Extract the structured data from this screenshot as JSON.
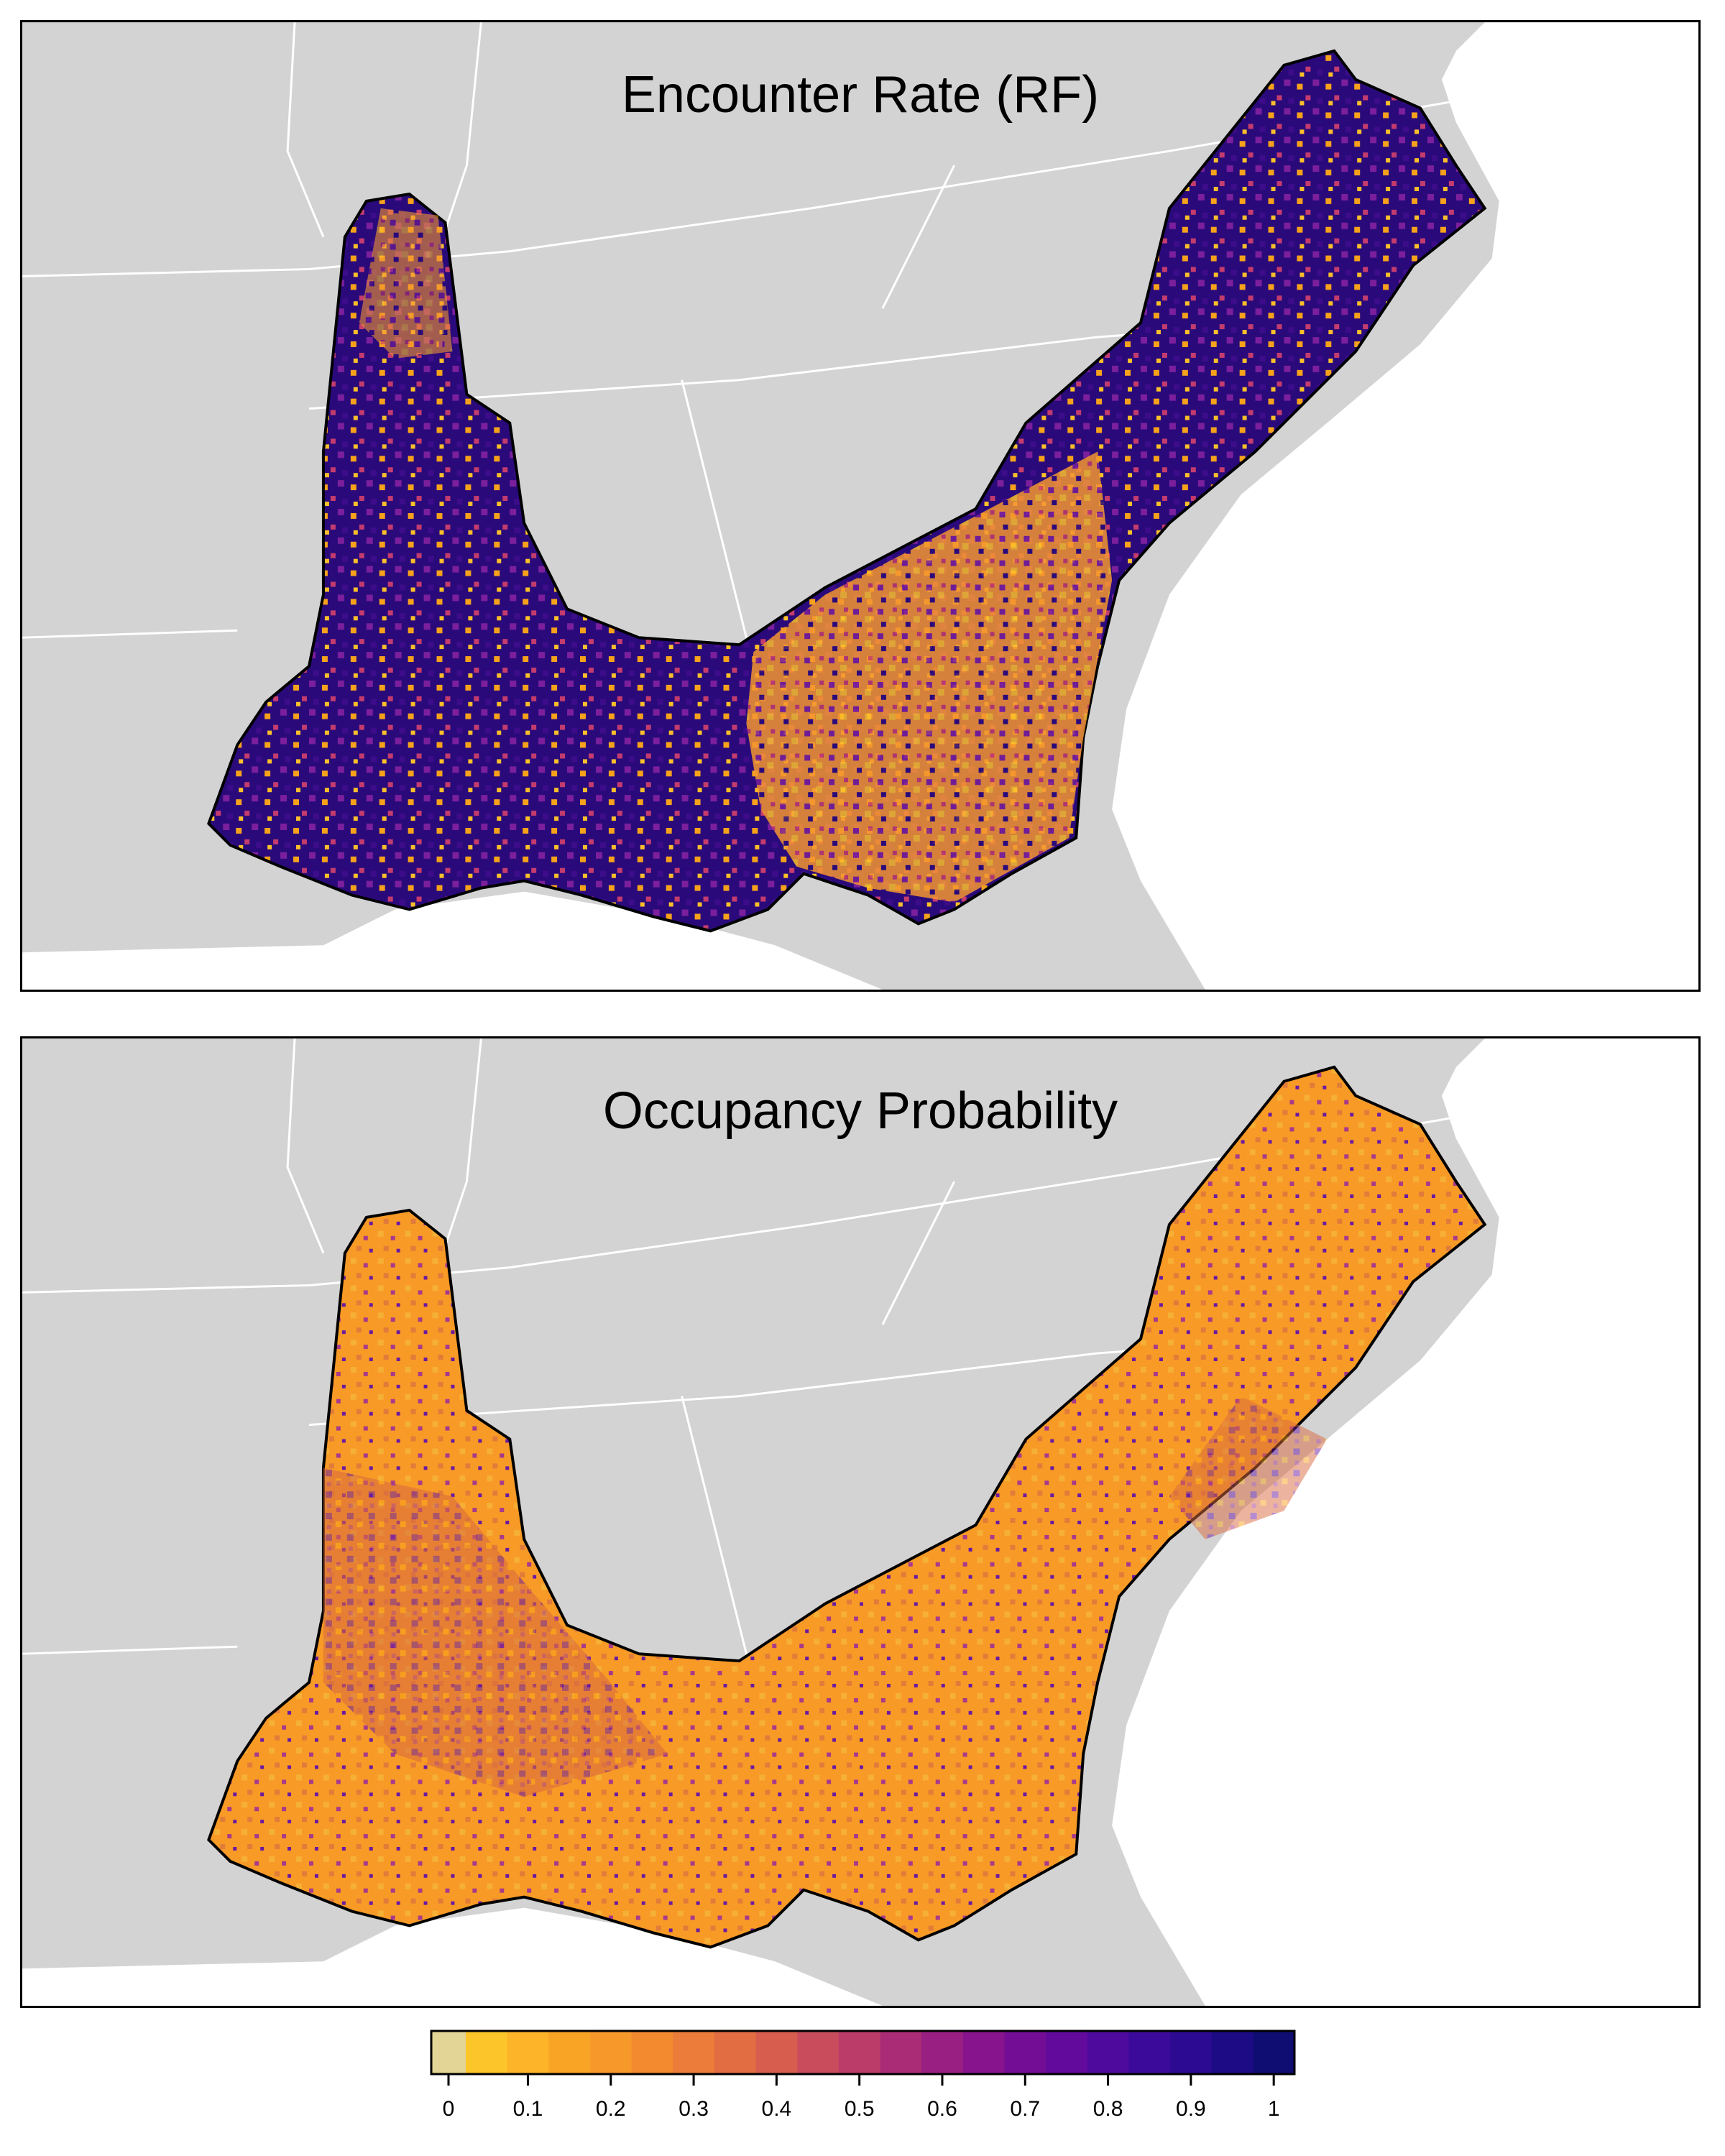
{
  "panels": [
    {
      "title": "Encounter Rate (RF)",
      "dominant_color": "#2a0a7a",
      "texture_colors": [
        "#1a0c6e",
        "#3d0c8a",
        "#7b1f9c",
        "#f7a21b",
        "#fdc02a",
        "#c43c6e"
      ]
    },
    {
      "title": "Occupancy Probability",
      "dominant_color": "#f89a26",
      "texture_colors": [
        "#f7a21b",
        "#f39530",
        "#f5b035",
        "#6a1aa0",
        "#a73a8a",
        "#e07c3a"
      ]
    }
  ],
  "colors": {
    "land": "#d3d3d3",
    "water": "#ffffff",
    "state_border": "#ffffff",
    "coast": "#000000"
  },
  "legend": {
    "tick_labels": [
      "0",
      "0.1",
      "0.2",
      "0.3",
      "0.4",
      "0.5",
      "0.6",
      "0.7",
      "0.8",
      "0.9",
      "1"
    ],
    "colors": [
      "#e3d595",
      "#fcc52a",
      "#fdb428",
      "#f9a425",
      "#f7982a",
      "#f38a30",
      "#ec7c3a",
      "#e36d43",
      "#d75e4e",
      "#c94c5c",
      "#bb3b69",
      "#ab2c76",
      "#9a1f83",
      "#87148d",
      "#740d95",
      "#610a9b",
      "#4e0a9d",
      "#3c0a9a",
      "#2c0a92",
      "#1d0b85",
      "#100d72"
    ]
  }
}
